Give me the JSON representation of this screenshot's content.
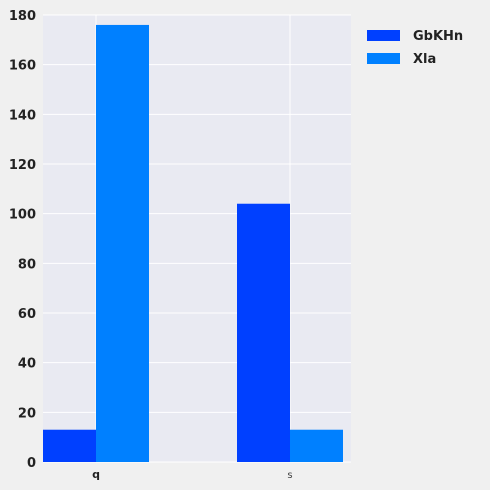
{
  "chart_data": {
    "type": "bar",
    "categories": [
      "q",
      "s"
    ],
    "series": [
      {
        "name": "GbKHn",
        "values": [
          13,
          104
        ],
        "color": "#0040ff"
      },
      {
        "name": "Xla",
        "values": [
          176,
          13
        ],
        "color": "#0080ff"
      }
    ],
    "ylim": [
      0,
      180
    ],
    "yticks": [
      0,
      20,
      40,
      60,
      80,
      100,
      120,
      140,
      160,
      180
    ],
    "title": "",
    "xlabel": "",
    "ylabel": "",
    "grid": true,
    "legend_position": "top-right outside",
    "colors": {
      "plot_background": "#e9eaf2",
      "page_background": "#f0f0f0",
      "grid": "#ffffff"
    }
  }
}
